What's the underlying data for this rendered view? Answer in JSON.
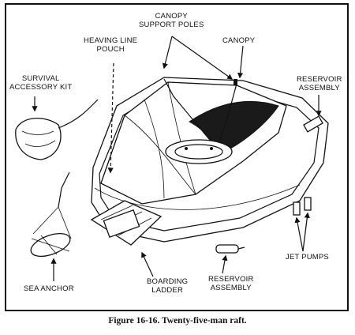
{
  "labels": {
    "canopy_support_poles": [
      "CANOPY",
      "SUPPORT POLES"
    ],
    "canopy": "CANOPY",
    "heaving_line_pouch": [
      "HEAVING LINE",
      "POUCH"
    ],
    "survival_accessory_kit": [
      "SURVIVAL",
      "ACCESSORY KIT"
    ],
    "reservoir_assembly_top": [
      "RESERVOIR",
      "ASSEMBLY"
    ],
    "boarding_ladder": [
      "BOARDING",
      "LADDER"
    ],
    "reservoir_assembly_bottom": [
      "RESERVOIR",
      "ASSEMBLY"
    ],
    "jet_pumps": "JET PUMPS",
    "sea_anchor": "SEA ANCHOR"
  },
  "caption": "Figure 16-16. Twenty-five-man raft."
}
